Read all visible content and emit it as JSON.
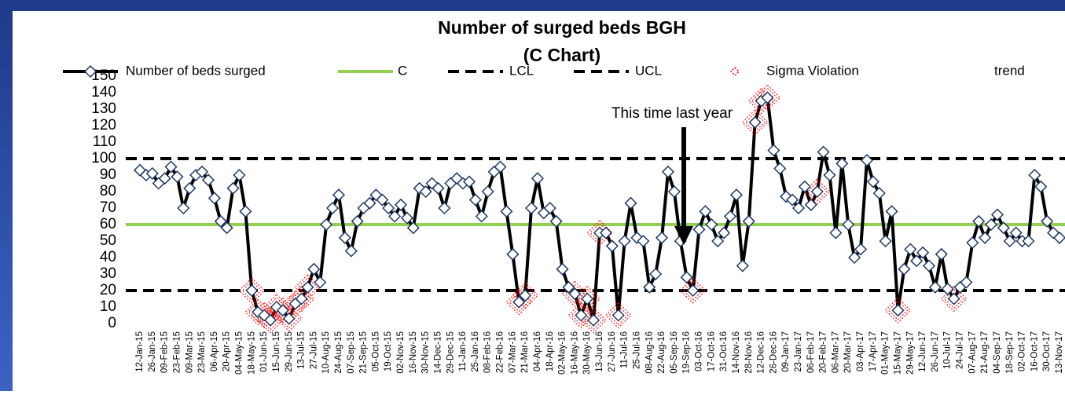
{
  "chart_data": {
    "type": "line",
    "title": "Number of surged beds BGH",
    "subtitle": "(C Chart)",
    "annotation": "This time last year",
    "categories": [
      "12-Jan-15",
      null,
      "26-Jan-15",
      null,
      "09-Feb-15",
      null,
      "23-Feb-15",
      null,
      "09-Mar-15",
      null,
      "23-Mar-15",
      null,
      "06-Apr-15",
      null,
      "20-Apr-15",
      null,
      "04-May-15",
      null,
      "18-May-15",
      null,
      "01-Jun-15",
      null,
      "15-Jun-15",
      null,
      "29-Jun-15",
      null,
      "13-Jul-15",
      null,
      "27-Jul-15",
      null,
      "10-Aug-15",
      null,
      "24-Aug-15",
      null,
      "07-Sep-15",
      null,
      "21-Sep-15",
      null,
      "05-Oct-15",
      null,
      "19-Oct-15",
      null,
      "02-Nov-15",
      null,
      "16-Nov-15",
      null,
      "30-Nov-15",
      null,
      "14-Dec-15",
      null,
      "29-Dec-15",
      null,
      "11-Jan-16",
      null,
      "25-Jan-16",
      null,
      "08-Feb-16",
      null,
      "22-Feb-16",
      null,
      "07-Mar-16",
      null,
      "21-Mar-16",
      null,
      "04-Apr-16",
      null,
      "18-Apr-16",
      null,
      "02-May-16",
      null,
      "16-May-16",
      null,
      "30-May-16",
      null,
      "13-Jun-16",
      null,
      "27-Jun-16",
      null,
      "11-Jul-16",
      null,
      "25-Jul-16",
      null,
      "08-Aug-16",
      null,
      "22-Aug-16",
      null,
      "05-Sep-16",
      null,
      "19-Sep-16",
      null,
      "03-Oct-16",
      null,
      "17-Oct-16",
      null,
      "31-Oct-16",
      null,
      "14-Nov-16",
      null,
      "28-Nov-16",
      null,
      "12-Dec-16",
      null,
      "26-Dec-16",
      null,
      "09-Jan-17",
      null,
      "23-Jan-17",
      null,
      "06-Feb-17",
      null,
      "20-Feb-17",
      null,
      "06-Mar-17",
      null,
      "20-Mar-17",
      null,
      "03-Apr-17",
      null,
      "17-Apr-17",
      null,
      "01-May-17",
      null,
      "15-May-17",
      null,
      "29-May-17",
      null,
      "12-Jun-17",
      null,
      "26-Jun-17",
      null,
      "10-Jul-17",
      null,
      "24-Jul-17",
      null,
      "07-Aug-17",
      null,
      "21-Aug-17",
      null,
      "04-Sep-17",
      null,
      "18-Sep-17",
      null,
      "02-Oct-17",
      null,
      "16-Oct-17",
      null,
      "30-Oct-17",
      null,
      "13-Nov-17"
    ],
    "series": [
      {
        "name": "Number of beds surged",
        "color": "#000000",
        "marker_color": "#1f3864",
        "values": [
          93,
          90,
          91,
          85,
          88,
          95,
          89,
          70,
          82,
          90,
          92,
          87,
          76,
          62,
          58,
          82,
          90,
          68,
          20,
          7,
          5,
          2,
          10,
          8,
          3,
          12,
          15,
          22,
          33,
          25,
          60,
          70,
          78,
          52,
          44,
          62,
          70,
          73,
          78,
          75,
          70,
          65,
          72,
          64,
          58,
          82,
          80,
          85,
          82,
          70,
          85,
          88,
          85,
          86,
          75,
          65,
          80,
          92,
          95,
          68,
          42,
          13,
          17,
          70,
          88,
          67,
          70,
          62,
          33,
          22,
          18,
          5,
          15,
          2,
          55,
          55,
          47,
          5,
          50,
          73,
          52,
          50,
          22,
          30,
          52,
          92,
          80,
          50,
          28,
          20,
          57,
          68,
          60,
          50,
          55,
          65,
          78,
          35,
          62,
          122,
          135,
          137,
          105,
          94,
          77,
          75,
          70,
          83,
          72,
          80,
          104,
          90,
          55,
          97,
          60,
          40,
          45,
          99,
          86,
          79,
          50,
          68,
          8,
          33,
          45,
          38,
          43,
          35,
          22,
          42,
          21,
          15,
          22,
          25,
          49,
          62,
          52,
          60,
          66,
          58,
          50,
          55,
          50,
          50,
          90,
          83,
          62,
          55,
          52
        ]
      }
    ],
    "lines": [
      {
        "name": "C",
        "color": "#92d050",
        "value": 60,
        "dashed": false
      },
      {
        "name": "LCL",
        "color": "#000000",
        "value": 20,
        "dashed": true
      },
      {
        "name": "UCL",
        "color": "#000000",
        "value": 100,
        "dashed": true
      }
    ],
    "sigma_violation": {
      "name": "Sigma Violation",
      "color": "#ff0000",
      "indices": [
        18,
        19,
        20,
        21,
        22,
        23,
        24,
        25,
        26,
        27,
        61,
        62,
        70,
        71,
        72,
        73,
        74,
        77,
        89,
        99,
        100,
        101,
        109,
        122,
        131
      ]
    },
    "trend": {
      "name": "trend"
    },
    "ylim": [
      0,
      150
    ],
    "yticks": [
      0,
      10,
      20,
      30,
      40,
      50,
      60,
      70,
      80,
      90,
      100,
      110,
      120,
      130,
      140,
      150
    ]
  }
}
